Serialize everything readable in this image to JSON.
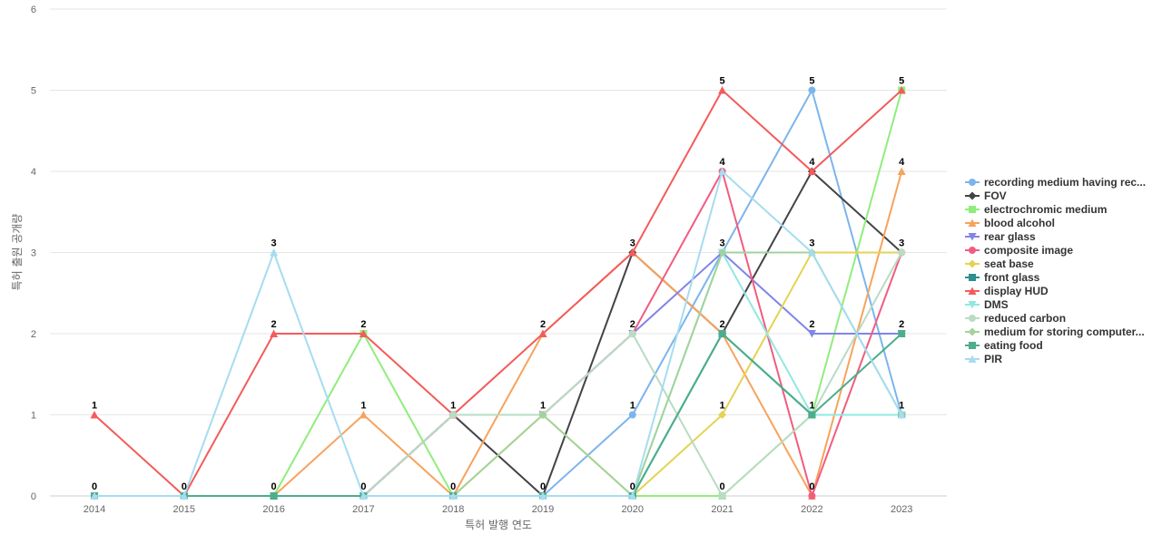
{
  "chart_data": {
    "type": "line",
    "title": "",
    "xlabel": "특허 발행 연도",
    "ylabel": "특허 출원 공개량",
    "categories": [
      "2014",
      "2015",
      "2016",
      "2017",
      "2018",
      "2019",
      "2020",
      "2021",
      "2022",
      "2023"
    ],
    "ylim": [
      0,
      6
    ],
    "yticks": [
      0,
      1,
      2,
      3,
      4,
      5,
      6
    ],
    "grid": true,
    "legend_position": "right",
    "series": [
      {
        "name": "recording medium having rec...",
        "color": "#7cb5ec",
        "marker": "circle",
        "values": [
          0,
          0,
          0,
          0,
          0,
          0,
          1,
          3,
          5,
          1
        ]
      },
      {
        "name": "FOV",
        "color": "#434348",
        "marker": "diamond",
        "values": [
          0,
          0,
          0,
          0,
          1,
          0,
          3,
          2,
          4,
          3
        ]
      },
      {
        "name": "electrochromic medium",
        "color": "#90ed7d",
        "marker": "square",
        "values": [
          0,
          0,
          0,
          2,
          0,
          0,
          0,
          0,
          1,
          5
        ]
      },
      {
        "name": "blood alcohol",
        "color": "#f7a35c",
        "marker": "triangle",
        "values": [
          0,
          0,
          0,
          1,
          0,
          2,
          3,
          2,
          0,
          4
        ]
      },
      {
        "name": "rear glass",
        "color": "#8085e9",
        "marker": "triangle-down",
        "values": [
          0,
          0,
          0,
          0,
          1,
          1,
          2,
          3,
          2,
          2
        ]
      },
      {
        "name": "composite image",
        "color": "#f15c80",
        "marker": "circle",
        "values": [
          0,
          0,
          0,
          0,
          1,
          1,
          2,
          4,
          0,
          3
        ]
      },
      {
        "name": "seat base",
        "color": "#e4d354",
        "marker": "diamond",
        "values": [
          0,
          0,
          0,
          0,
          0,
          1,
          0,
          1,
          3,
          3
        ]
      },
      {
        "name": "front glass",
        "color": "#2b908f",
        "marker": "square",
        "values": [
          0,
          0,
          0,
          0,
          0,
          0,
          0,
          2,
          1,
          1
        ]
      },
      {
        "name": "display HUD",
        "color": "#f45b5b",
        "marker": "triangle",
        "values": [
          1,
          0,
          2,
          2,
          1,
          2,
          3,
          5,
          4,
          5
        ]
      },
      {
        "name": "DMS",
        "color": "#91e8e1",
        "marker": "triangle-down",
        "values": [
          0,
          0,
          0,
          0,
          0,
          0,
          0,
          3,
          1,
          1
        ]
      },
      {
        "name": "reduced carbon",
        "color": "#b8dcc4",
        "marker": "circle",
        "values": [
          0,
          0,
          0,
          0,
          1,
          1,
          2,
          0,
          1,
          3
        ]
      },
      {
        "name": "medium for storing computer...",
        "color": "#a2d39c",
        "marker": "diamond",
        "values": [
          0,
          0,
          0,
          0,
          0,
          1,
          0,
          3,
          3,
          1
        ]
      },
      {
        "name": "eating food",
        "color": "#4cae8a",
        "marker": "square",
        "values": [
          0,
          0,
          0,
          0,
          0,
          0,
          0,
          2,
          1,
          2
        ]
      },
      {
        "name": "PIR",
        "color": "#a6dcef",
        "marker": "triangle",
        "values": [
          0,
          0,
          3,
          0,
          0,
          0,
          0,
          4,
          3,
          1
        ]
      }
    ],
    "top_labels": [
      {
        "x": "2014",
        "y": 0,
        "text": "0"
      },
      {
        "x": "2014",
        "y": 1,
        "text": "1"
      },
      {
        "x": "2015",
        "y": 0,
        "text": "0"
      },
      {
        "x": "2016",
        "y": 0,
        "text": "0"
      },
      {
        "x": "2016",
        "y": 2,
        "text": "2"
      },
      {
        "x": "2016",
        "y": 3,
        "text": "3"
      },
      {
        "x": "2017",
        "y": 0,
        "text": "0"
      },
      {
        "x": "2017",
        "y": 1,
        "text": "1"
      },
      {
        "x": "2017",
        "y": 2,
        "text": "2"
      },
      {
        "x": "2018",
        "y": 0,
        "text": "0"
      },
      {
        "x": "2018",
        "y": 1,
        "text": "1"
      },
      {
        "x": "2019",
        "y": 0,
        "text": "0"
      },
      {
        "x": "2019",
        "y": 1,
        "text": "1"
      },
      {
        "x": "2019",
        "y": 2,
        "text": "2"
      },
      {
        "x": "2020",
        "y": 0,
        "text": "0"
      },
      {
        "x": "2020",
        "y": 1,
        "text": "1"
      },
      {
        "x": "2020",
        "y": 2,
        "text": "2"
      },
      {
        "x": "2020",
        "y": 3,
        "text": "3"
      },
      {
        "x": "2021",
        "y": 0,
        "text": "0"
      },
      {
        "x": "2021",
        "y": 1,
        "text": "1"
      },
      {
        "x": "2021",
        "y": 2,
        "text": "2"
      },
      {
        "x": "2021",
        "y": 3,
        "text": "3"
      },
      {
        "x": "2021",
        "y": 4,
        "text": "4"
      },
      {
        "x": "2021",
        "y": 5,
        "text": "5"
      },
      {
        "x": "2022",
        "y": 0,
        "text": "0"
      },
      {
        "x": "2022",
        "y": 1,
        "text": "1"
      },
      {
        "x": "2022",
        "y": 2,
        "text": "2"
      },
      {
        "x": "2022",
        "y": 3,
        "text": "3"
      },
      {
        "x": "2022",
        "y": 4,
        "text": "4"
      },
      {
        "x": "2022",
        "y": 5,
        "text": "5"
      },
      {
        "x": "2023",
        "y": 1,
        "text": "1"
      },
      {
        "x": "2023",
        "y": 2,
        "text": "2"
      },
      {
        "x": "2023",
        "y": 3,
        "text": "3"
      },
      {
        "x": "2023",
        "y": 4,
        "text": "4"
      },
      {
        "x": "2023",
        "y": 5,
        "text": "5"
      }
    ]
  }
}
